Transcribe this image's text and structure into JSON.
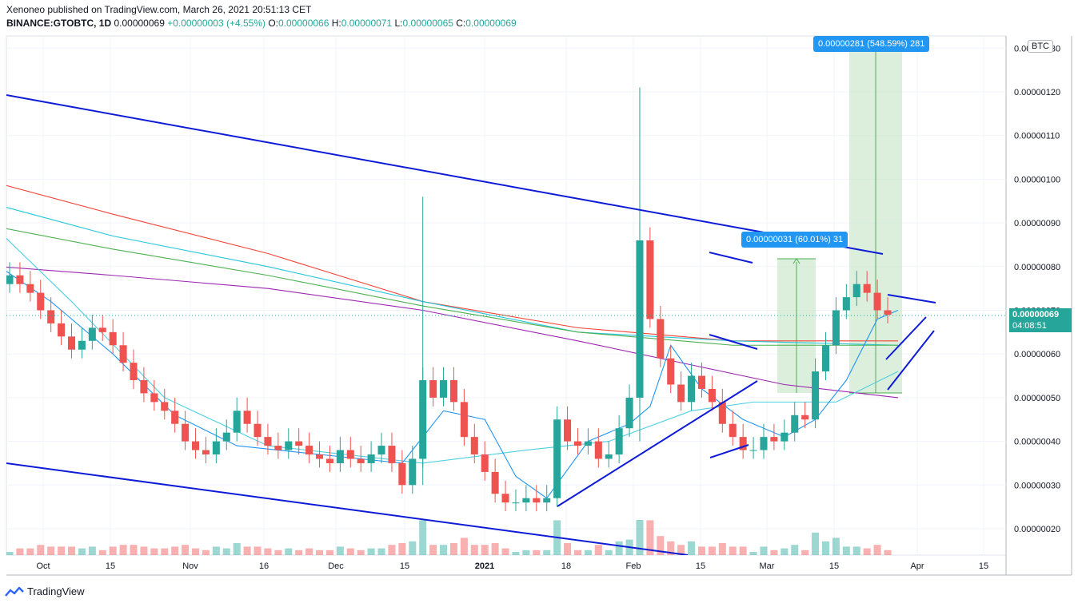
{
  "header": {
    "publisher": "Xenoneo published on TradingView.com, March 26, 2021 20:51:13 CET",
    "symbol": "BINANCE:GTOBTC, 1D",
    "last": "0.00000069",
    "change": "+0.00000003 (+4.55%)",
    "o_label": "O:",
    "o_value": "0.00000066",
    "h_label": "H:",
    "h_value": "0.00000071",
    "l_label": "L:",
    "l_value": "0.00000065",
    "c_label": "C:",
    "c_value": "0.00000069"
  },
  "footer": {
    "brand": "TradingView"
  },
  "currency_button": "BTC",
  "current_price": {
    "price": "0.00000069",
    "countdown": "04:08:51",
    "color": "#26a69a"
  },
  "measure_labels": [
    {
      "text": "0.00000281 (548.59%) 281"
    },
    {
      "text": "0.00000031 (60.01%) 31"
    }
  ],
  "colors": {
    "up": "#26a69a",
    "down": "#ef5350",
    "trendline": "#0d1bd6",
    "ma_red": "#f44336",
    "ma_teal": "#26c6da",
    "ma_green": "#4caf50",
    "ma_purple": "#9c27b0",
    "ma_fast": "#2196f3",
    "ma_cyan": "#4dd0e1",
    "measure_fill": "#c8e6c9"
  },
  "chart_data": {
    "type": "candlestick",
    "y_unit": "BTC",
    "yaxis_ticks": [
      "0.00000130",
      "0.00000120",
      "0.00000110",
      "0.00000100",
      "0.00000090",
      "0.00000080",
      "0.00000070",
      "0.00000060",
      "0.00000050",
      "0.00000040",
      "0.00000030",
      "0.00000020"
    ],
    "xaxis_ticks": [
      "Oct",
      "15",
      "Nov",
      "16",
      "Dec",
      "15",
      "2021",
      "18",
      "Feb",
      "15",
      "Mar",
      "15",
      "Apr",
      "15"
    ],
    "ylim": [
      1.4e-07,
      1.3e-06
    ],
    "x_range_days": [
      "2020-09-24",
      "2021-04-23"
    ],
    "ohlc_close_series": [
      7.8e-07,
      7.6e-07,
      7.4e-07,
      7e-07,
      6.7e-07,
      6.4e-07,
      6.1e-07,
      6.3e-07,
      6.6e-07,
      6.5e-07,
      6.2e-07,
      5.8e-07,
      5.4e-07,
      5.1e-07,
      4.9e-07,
      4.7e-07,
      4.4e-07,
      4e-07,
      3.8e-07,
      3.7e-07,
      4e-07,
      4.2e-07,
      4.7e-07,
      4.4e-07,
      4.1e-07,
      3.9e-07,
      3.8e-07,
      4e-07,
      3.9e-07,
      3.7e-07,
      3.6e-07,
      3.5e-07,
      3.8e-07,
      3.6e-07,
      3.5e-07,
      3.7e-07,
      3.9e-07,
      3.5e-07,
      3e-07,
      3.6e-07,
      5.4e-07,
      5e-07,
      5.4e-07,
      4.9e-07,
      4.1e-07,
      3.7e-07,
      3.3e-07,
      2.8e-07,
      2.6e-07,
      2.6e-07,
      2.7e-07,
      2.6e-07,
      2.7e-07,
      4.5e-07,
      4e-07,
      3.9e-07,
      4e-07,
      3.6e-07,
      3.7e-07,
      4.3e-07,
      5e-07,
      8.6e-07,
      6.8e-07,
      5.9e-07,
      5.3e-07,
      4.9e-07,
      5.5e-07,
      5.2e-07,
      4.9e-07,
      4.4e-07,
      4.1e-07,
      3.8e-07,
      3.8e-07,
      4.1e-07,
      4e-07,
      4.2e-07,
      4.6e-07,
      4.5e-07,
      5.6e-07,
      6.2e-07,
      7e-07,
      7.3e-07,
      7.6e-07,
      7.4e-07,
      7e-07,
      6.9e-07
    ],
    "annotations": [
      "0.00000281 (548.59%) 281",
      "0.00000031 (60.01%) 31"
    ],
    "grid": true,
    "volume_pane": true
  }
}
